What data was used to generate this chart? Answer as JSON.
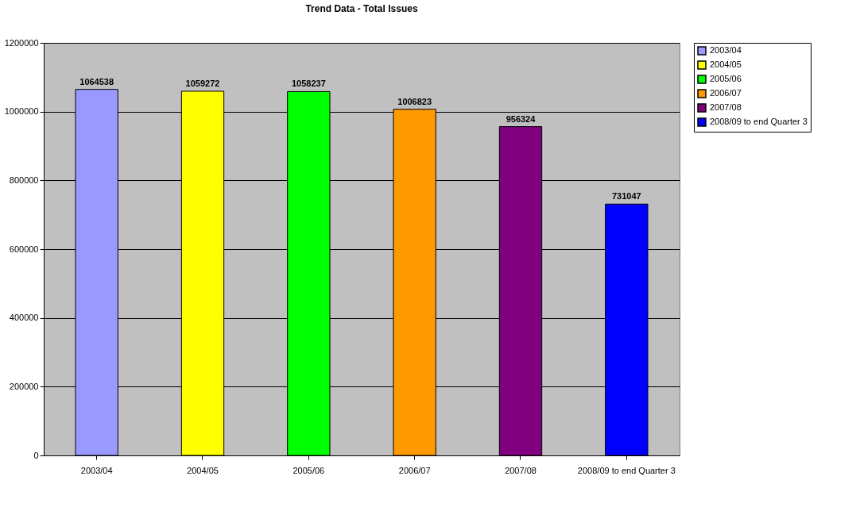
{
  "chart_data": {
    "type": "bar",
    "title": "Trend Data - Total Issues",
    "categories": [
      "2003/04",
      "2004/05",
      "2005/06",
      "2006/07",
      "2007/08",
      "2008/09 to end Quarter 3"
    ],
    "series": [
      {
        "name": "2003/04",
        "color": "#9999ff",
        "values": [
          1064538,
          null,
          null,
          null,
          null,
          null
        ]
      },
      {
        "name": "2004/05",
        "color": "#ffff00",
        "values": [
          null,
          1059272,
          null,
          null,
          null,
          null
        ]
      },
      {
        "name": "2005/06",
        "color": "#00ff00",
        "values": [
          null,
          null,
          1058237,
          null,
          null,
          null
        ]
      },
      {
        "name": "2006/07",
        "color": "#ff9900",
        "values": [
          null,
          null,
          null,
          1006823,
          null,
          null
        ]
      },
      {
        "name": "2007/08",
        "color": "#800080",
        "values": [
          null,
          null,
          null,
          null,
          956324,
          null
        ]
      },
      {
        "name": "2008/09 to end Quarter 3",
        "color": "#0000ff",
        "values": [
          null,
          null,
          null,
          null,
          null,
          731047
        ]
      }
    ],
    "ylim": [
      0,
      1200000
    ],
    "yticks": [
      0,
      200000,
      400000,
      600000,
      800000,
      1000000,
      1200000
    ],
    "grid": "y",
    "legend": "right",
    "data_labels": true
  }
}
